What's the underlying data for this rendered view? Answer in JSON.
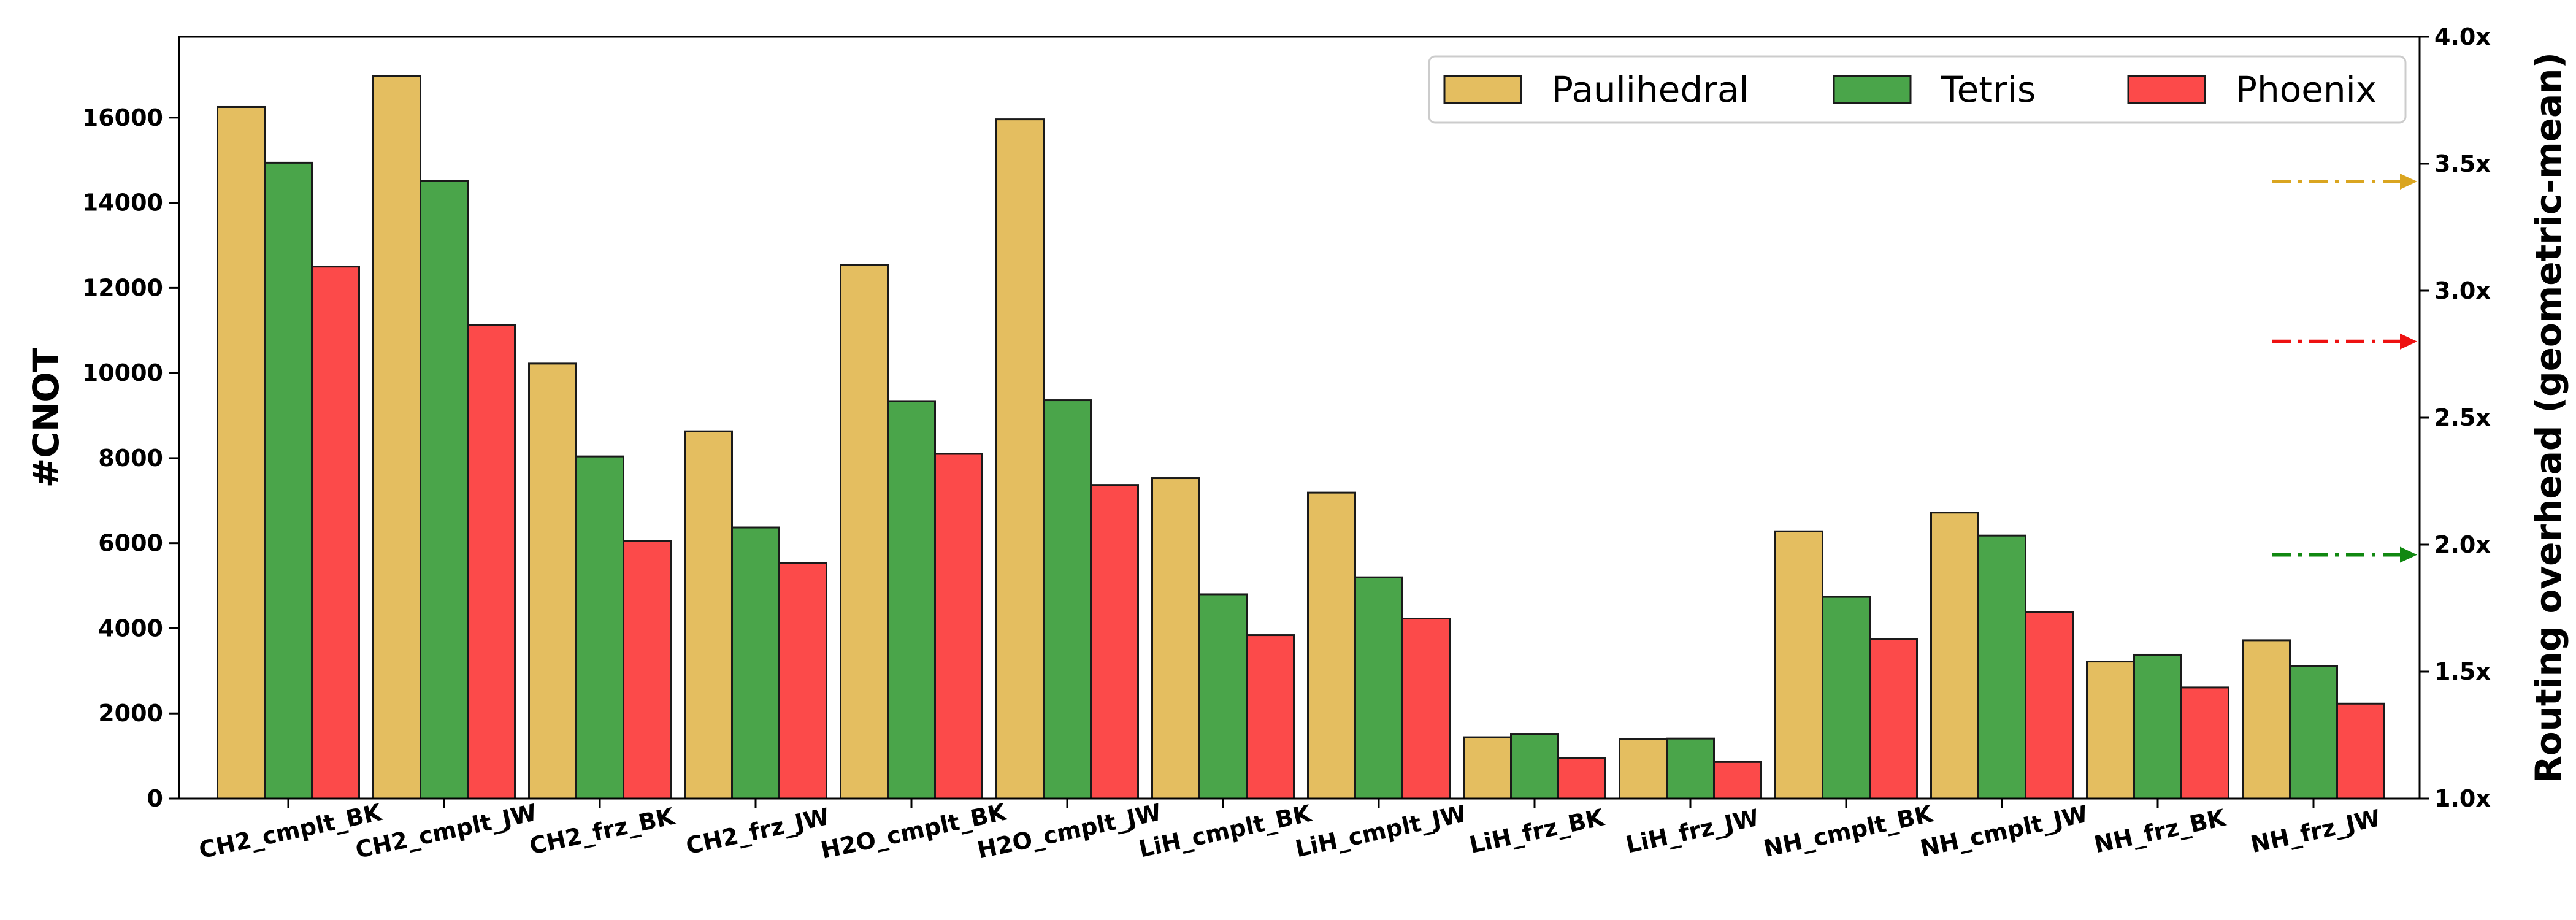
{
  "chart_data": {
    "type": "bar",
    "categories": [
      "CH2_cmplt_BK",
      "CH2_cmplt_JW",
      "CH2_frz_BK",
      "CH2_frz_JW",
      "H2O_cmplt_BK",
      "H2O_cmplt_JW",
      "LiH_cmplt_BK",
      "LiH_cmplt_JW",
      "LiH_frz_BK",
      "LiH_frz_JW",
      "NH_cmplt_BK",
      "NH_cmplt_JW",
      "NH_frz_BK",
      "NH_frz_JW"
    ],
    "series": [
      {
        "name": "Paulihedral",
        "color": "#e4be60",
        "values": [
          16250,
          16980,
          10220,
          8630,
          12540,
          15960,
          7530,
          7190,
          1440,
          1400,
          6280,
          6720,
          3220,
          3720
        ]
      },
      {
        "name": "Tetris",
        "color": "#4aa54a",
        "values": [
          14940,
          14520,
          8040,
          6370,
          9340,
          9360,
          4800,
          5200,
          1520,
          1410,
          4740,
          6180,
          3380,
          3120
        ]
      },
      {
        "name": "Phoenix",
        "color": "#fc4a4a",
        "values": [
          12500,
          11120,
          6060,
          5530,
          8100,
          7370,
          3840,
          4230,
          950,
          860,
          3740,
          4380,
          2610,
          2230
        ]
      }
    ],
    "ylabel": "#CNOT",
    "ylim": [
      0,
      17900
    ],
    "yticks": [
      0,
      2000,
      4000,
      6000,
      8000,
      10000,
      12000,
      14000,
      16000
    ],
    "y2label": "Routing overhead (geometric-mean)",
    "y2lim": [
      1.0,
      4.0
    ],
    "y2ticks": [
      "1.0x",
      "1.5x",
      "2.0x",
      "2.5x",
      "3.0x",
      "3.5x",
      "4.0x"
    ],
    "y2tick_values": [
      1.0,
      1.5,
      2.0,
      2.5,
      3.0,
      3.5,
      4.0
    ],
    "overhead_markers": [
      {
        "series": "Paulihedral",
        "value": 3.43,
        "color": "#daa520"
      },
      {
        "series": "Phoenix",
        "value": 2.8,
        "color": "#ee1111"
      },
      {
        "series": "Tetris",
        "value": 1.96,
        "color": "#118811"
      }
    ],
    "legend": {
      "position": "top-right"
    },
    "grid": false
  }
}
